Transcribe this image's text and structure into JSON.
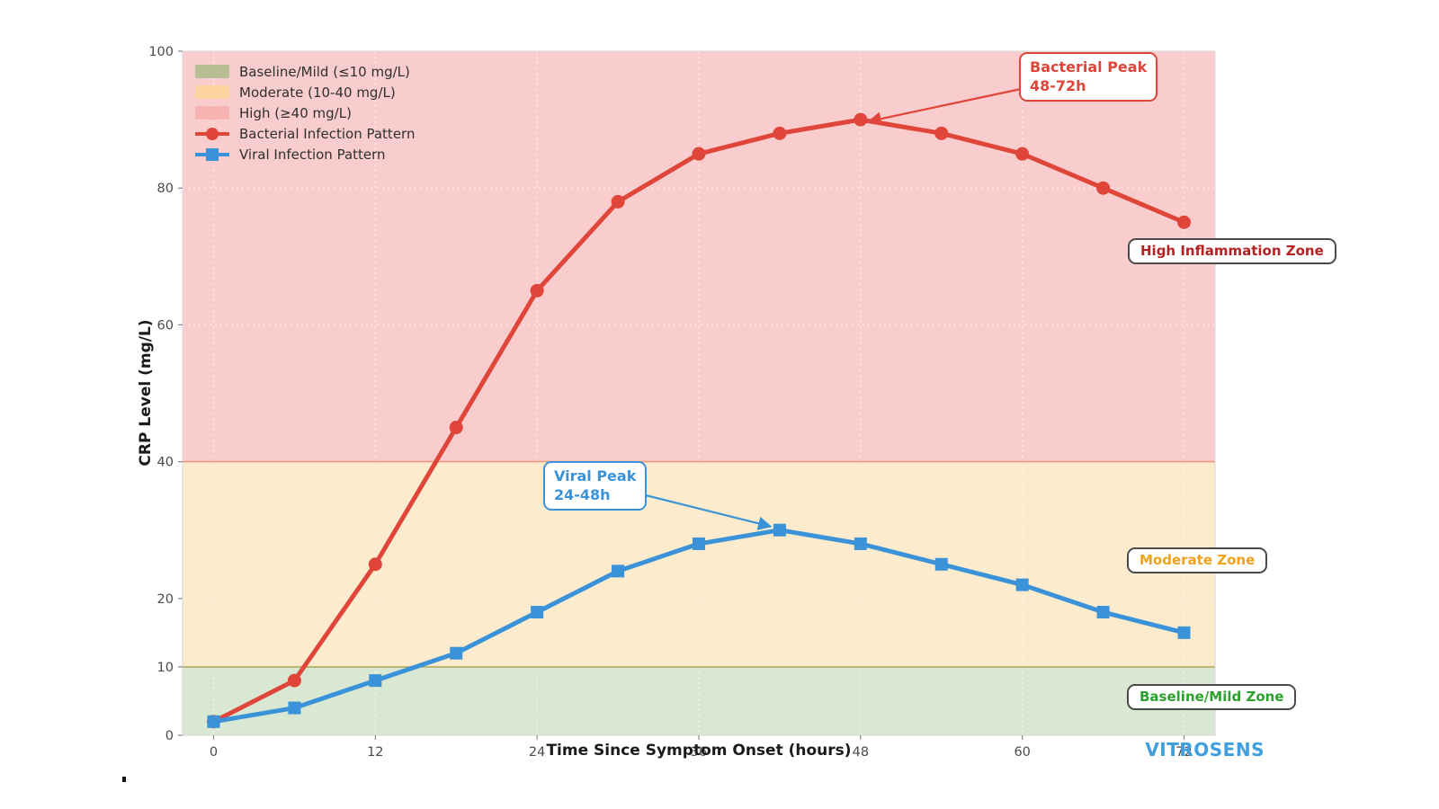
{
  "branding": "VITROSENS",
  "chart_data": {
    "type": "line",
    "title": "",
    "xlabel": "Time Since Symptom Onset (hours)",
    "ylabel": "CRP Level (mg/L)",
    "x_ticks": [
      0,
      12,
      24,
      36,
      48,
      60,
      72
    ],
    "y_ticks": [
      0,
      10,
      20,
      40,
      60,
      80,
      100
    ],
    "xlim": [
      -2.3,
      74.3
    ],
    "ylim": [
      0,
      100
    ],
    "grid": true,
    "grid_y_dashed": [
      20,
      60,
      80
    ],
    "x": [
      0,
      6,
      12,
      18,
      24,
      30,
      36,
      42,
      48,
      54,
      60,
      66,
      72
    ],
    "series": [
      {
        "name": "Bacterial Infection Pattern",
        "slug": "bacterial",
        "color": "#e0453a",
        "marker": "circle",
        "values": [
          2,
          8,
          25,
          45,
          65,
          78,
          85,
          88,
          90,
          88,
          85,
          80,
          75
        ]
      },
      {
        "name": "Viral Infection Pattern",
        "slug": "viral",
        "color": "#3a92d8",
        "marker": "square",
        "values": [
          2,
          4,
          8,
          12,
          18,
          24,
          28,
          30,
          28,
          25,
          22,
          18,
          15
        ]
      }
    ],
    "zones": [
      {
        "label": "Baseline/Mild (≤10 mg/L)",
        "from": 0,
        "to": 10,
        "fill": "#d9e8d2",
        "swatch": "#b9bd93",
        "edge": "#b3ab5c"
      },
      {
        "label": "Moderate (10-40 mg/L)",
        "from": 10,
        "to": 40,
        "fill": "#fcebcd",
        "swatch": "#fdd4a0",
        "edge": "#f0997f"
      },
      {
        "label": "High (≥40 mg/L)",
        "from": 40,
        "to": 100,
        "fill": "#f9cdcd",
        "swatch": "#f8b3b3",
        "edge": ""
      }
    ],
    "callouts": [
      {
        "id": "bacterial-peak",
        "text": "Bacterial Peak\n48-72h",
        "color": "#e0453a",
        "target_x": 48,
        "target_y": 90
      },
      {
        "id": "viral-peak",
        "text": "Viral Peak\n24-48h",
        "color": "#3a92d8",
        "target_x": 42,
        "target_y": 30
      }
    ],
    "zone_labels": [
      {
        "id": "high-zone",
        "text": "High Inflammation Zone",
        "color": "#b22222"
      },
      {
        "id": "moderate-zone",
        "text": "Moderate Zone",
        "color": "#f0a11e"
      },
      {
        "id": "baseline-zone",
        "text": "Baseline/Mild Zone",
        "color": "#2da12d"
      }
    ]
  }
}
